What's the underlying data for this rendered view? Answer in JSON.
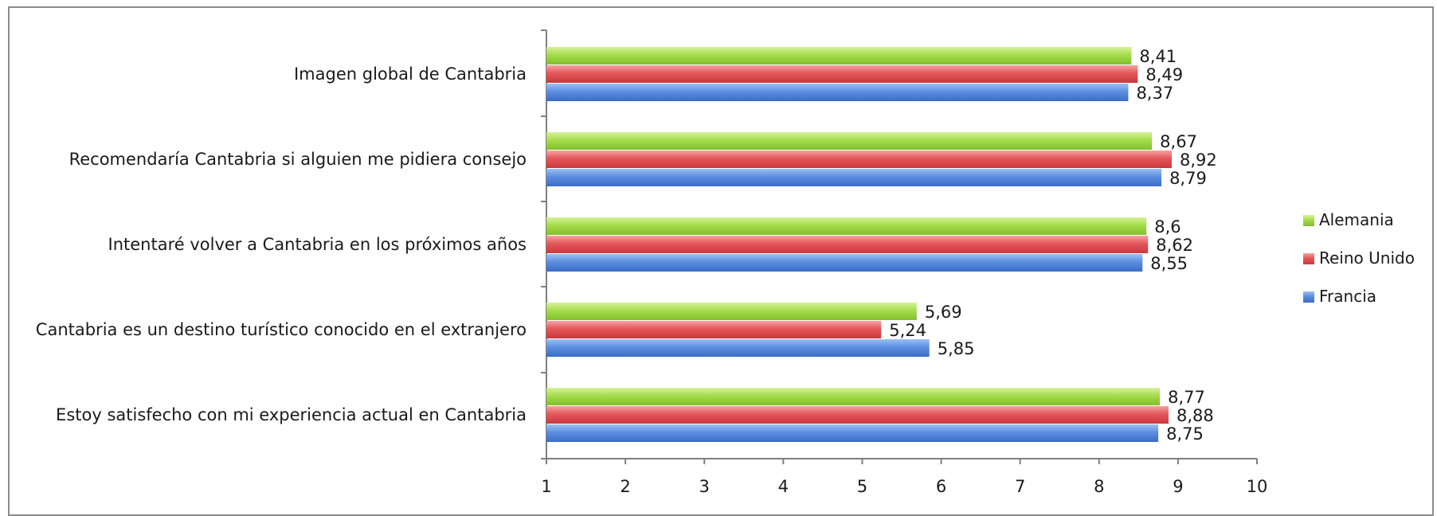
{
  "chart_data": {
    "type": "bar",
    "orientation": "horizontal",
    "categories": [
      "Imagen global de Cantabria",
      "Recomendaría Cantabria si alguien me pidiera consejo",
      "Intentaré volver a Cantabria en los próximos años",
      "Cantabria es un destino turístico conocido en el extranjero",
      "Estoy satisfecho con mi experiencia actual en Cantabria"
    ],
    "series": [
      {
        "name": "Alemania",
        "color": "#9bd33c",
        "values": [
          8.41,
          8.67,
          8.6,
          5.69,
          8.77
        ],
        "labels": [
          "8,41",
          "8,67",
          "8,6",
          "5,69",
          "8,77"
        ]
      },
      {
        "name": "Reino Unido",
        "color": "#e0474c",
        "values": [
          8.49,
          8.92,
          8.62,
          5.24,
          8.88
        ],
        "labels": [
          "8,49",
          "8,92",
          "8,62",
          "5,24",
          "8,88"
        ]
      },
      {
        "name": "Francia",
        "color": "#4a7fd6",
        "values": [
          8.37,
          8.79,
          8.55,
          5.85,
          8.75
        ],
        "labels": [
          "8,37",
          "8,79",
          "8,55",
          "5,85",
          "8,75"
        ]
      }
    ],
    "xlim": [
      1,
      10
    ],
    "ticks": [
      "1",
      "2",
      "3",
      "4",
      "5",
      "6",
      "7",
      "8",
      "9",
      "10"
    ],
    "grid": false,
    "legend": "right",
    "title": "",
    "xlabel": "",
    "ylabel": ""
  }
}
